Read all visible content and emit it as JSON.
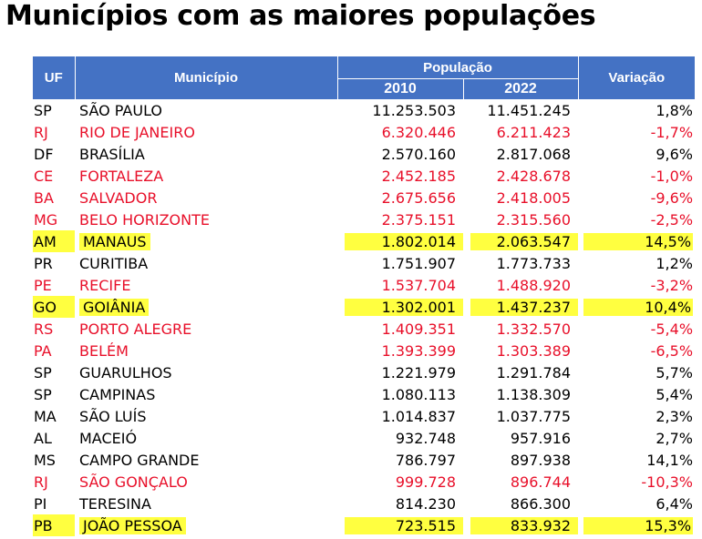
{
  "title": "Municípios com as maiores populações",
  "header": {
    "uf": "UF",
    "municipio": "Município",
    "populacao": "População",
    "year_2010": "2010",
    "year_2022": "2022",
    "variacao": "Variação"
  },
  "colors": {
    "header_bg": "#4472c4",
    "negative_text": "#e8102a",
    "highlight": "#ffff40"
  },
  "rows": [
    {
      "uf": "SP",
      "municipio": "SÃO PAULO",
      "p2010": "11.253.503",
      "p2022": "11.451.245",
      "var": "1,8%",
      "negative": false,
      "highlight": false
    },
    {
      "uf": "RJ",
      "municipio": "RIO DE JANEIRO",
      "p2010": "6.320.446",
      "p2022": "6.211.423",
      "var": "-1,7%",
      "negative": true,
      "highlight": false
    },
    {
      "uf": "DF",
      "municipio": "BRASÍLIA",
      "p2010": "2.570.160",
      "p2022": "2.817.068",
      "var": "9,6%",
      "negative": false,
      "highlight": false
    },
    {
      "uf": "CE",
      "municipio": "FORTALEZA",
      "p2010": "2.452.185",
      "p2022": "2.428.678",
      "var": "-1,0%",
      "negative": true,
      "highlight": false
    },
    {
      "uf": "BA",
      "municipio": "SALVADOR",
      "p2010": "2.675.656",
      "p2022": "2.418.005",
      "var": "-9,6%",
      "negative": true,
      "highlight": false
    },
    {
      "uf": "MG",
      "municipio": "BELO HORIZONTE",
      "p2010": "2.375.151",
      "p2022": "2.315.560",
      "var": "-2,5%",
      "negative": true,
      "highlight": false
    },
    {
      "uf": "AM",
      "municipio": "MANAUS",
      "p2010": "1.802.014",
      "p2022": "2.063.547",
      "var": "14,5%",
      "negative": false,
      "highlight": true
    },
    {
      "uf": "PR",
      "municipio": "CURITIBA",
      "p2010": "1.751.907",
      "p2022": "1.773.733",
      "var": "1,2%",
      "negative": false,
      "highlight": false
    },
    {
      "uf": "PE",
      "municipio": "RECIFE",
      "p2010": "1.537.704",
      "p2022": "1.488.920",
      "var": "-3,2%",
      "negative": true,
      "highlight": false
    },
    {
      "uf": "GO",
      "municipio": "GOIÂNIA",
      "p2010": "1.302.001",
      "p2022": "1.437.237",
      "var": "10,4%",
      "negative": false,
      "highlight": true
    },
    {
      "uf": "RS",
      "municipio": "PORTO ALEGRE",
      "p2010": "1.409.351",
      "p2022": "1.332.570",
      "var": "-5,4%",
      "negative": true,
      "highlight": false
    },
    {
      "uf": "PA",
      "municipio": "BELÉM",
      "p2010": "1.393.399",
      "p2022": "1.303.389",
      "var": "-6,5%",
      "negative": true,
      "highlight": false
    },
    {
      "uf": "SP",
      "municipio": "GUARULHOS",
      "p2010": "1.221.979",
      "p2022": "1.291.784",
      "var": "5,7%",
      "negative": false,
      "highlight": false
    },
    {
      "uf": "SP",
      "municipio": "CAMPINAS",
      "p2010": "1.080.113",
      "p2022": "1.138.309",
      "var": "5,4%",
      "negative": false,
      "highlight": false
    },
    {
      "uf": "MA",
      "municipio": "SÃO LUÍS",
      "p2010": "1.014.837",
      "p2022": "1.037.775",
      "var": "2,3%",
      "negative": false,
      "highlight": false
    },
    {
      "uf": "AL",
      "municipio": "MACEIÓ",
      "p2010": "932.748",
      "p2022": "957.916",
      "var": "2,7%",
      "negative": false,
      "highlight": false
    },
    {
      "uf": "MS",
      "municipio": "CAMPO GRANDE",
      "p2010": "786.797",
      "p2022": "897.938",
      "var": "14,1%",
      "negative": false,
      "highlight": false
    },
    {
      "uf": "RJ",
      "municipio": "SÃO GONÇALO",
      "p2010": "999.728",
      "p2022": "896.744",
      "var": "-10,3%",
      "negative": true,
      "highlight": false
    },
    {
      "uf": "PI",
      "municipio": "TERESINA",
      "p2010": "814.230",
      "p2022": "866.300",
      "var": "6,4%",
      "negative": false,
      "highlight": false
    },
    {
      "uf": "PB",
      "municipio": "JOÃO PESSOA",
      "p2010": "723.515",
      "p2022": "833.932",
      "var": "15,3%",
      "negative": false,
      "highlight": true
    }
  ]
}
